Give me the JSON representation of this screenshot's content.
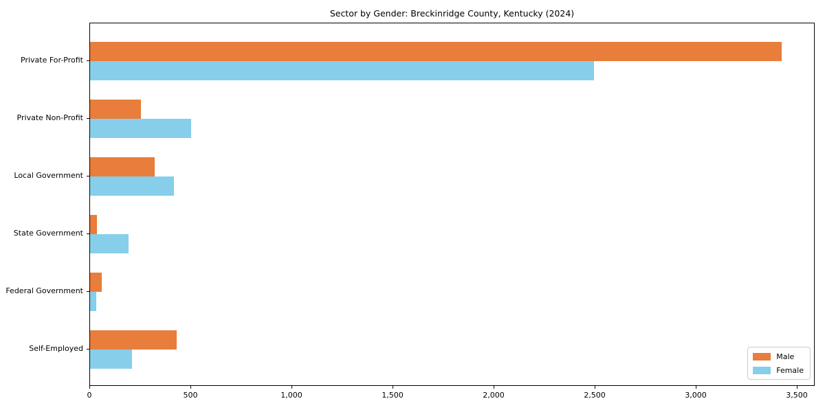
{
  "chart_data": {
    "type": "bar",
    "orientation": "horizontal",
    "title": "Sector by Gender: Breckinridge County, Kentucky (2024)",
    "xlabel": "",
    "ylabel": "",
    "categories": [
      "Private For-Profit",
      "Private Non-Profit",
      "Local Government",
      "State Government",
      "Federal Government",
      "Self-Employed"
    ],
    "series": [
      {
        "name": "Male",
        "color": "#E87D3C",
        "values": [
          3420,
          252,
          318,
          34,
          57,
          428
        ]
      },
      {
        "name": "Female",
        "color": "#87CEEB",
        "values": [
          2493,
          500,
          414,
          190,
          32,
          207
        ]
      }
    ],
    "xlim": [
      0,
      3588
    ],
    "xticks": {
      "values": [
        0,
        500,
        1000,
        1500,
        2000,
        2500,
        3000,
        3500
      ],
      "labels": [
        "0",
        "500",
        "1,000",
        "1,500",
        "2,000",
        "2,500",
        "3,000",
        "3,500"
      ]
    },
    "grid": false,
    "legend": {
      "position": "lower right"
    }
  }
}
